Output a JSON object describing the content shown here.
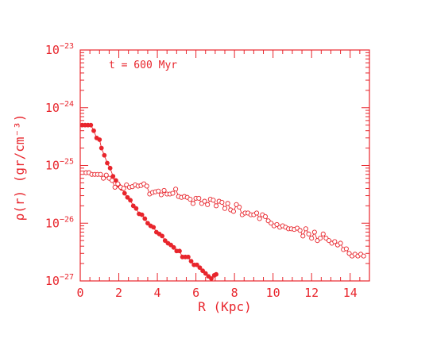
{
  "chart_data": {
    "type": "scatter",
    "annotation": "t = 600 Myr",
    "xlabel": "R (Kpc)",
    "ylabel": "ρ(r) (gr/cm⁻³)",
    "xlim": [
      0,
      15
    ],
    "ylim_log10": [
      -27,
      -23
    ],
    "y_scale": "log",
    "x_ticks": [
      "0",
      "2",
      "4",
      "6",
      "8",
      "10",
      "12",
      "14"
    ],
    "y_ticks": [
      {
        "base": "10",
        "exp": "−23"
      },
      {
        "base": "10",
        "exp": "−24"
      },
      {
        "base": "10",
        "exp": "−25"
      },
      {
        "base": "10",
        "exp": "−26"
      },
      {
        "base": "10",
        "exp": "−27"
      }
    ],
    "colors": {
      "axis": "#e8252c",
      "series": "#e8252c"
    },
    "series": [
      {
        "marker": "filled-circle",
        "x": [
          0.1,
          0.25,
          0.4,
          0.55,
          0.7,
          0.85,
          1.0,
          1.1,
          1.25,
          1.4,
          1.55,
          1.7,
          1.85,
          2.0,
          2.15,
          2.3,
          2.45,
          2.6,
          2.75,
          2.9,
          3.05,
          3.2,
          3.35,
          3.5,
          3.65,
          3.8,
          3.95,
          4.1,
          4.25,
          4.4,
          4.55,
          4.7,
          4.85,
          5.0,
          5.15,
          5.3,
          5.45,
          5.6,
          5.75,
          5.9,
          6.05,
          6.2,
          6.35,
          6.5,
          6.65,
          6.8,
          6.95,
          7.05
        ],
        "y": [
          5e-25,
          5e-25,
          5e-25,
          5e-25,
          4e-25,
          3e-25,
          2.8e-25,
          2e-25,
          1.5e-25,
          1.1e-25,
          9e-26,
          6.5e-26,
          5.5e-26,
          4.5e-26,
          4e-26,
          3.3e-26,
          2.8e-26,
          2.5e-26,
          2e-26,
          1.8e-26,
          1.45e-26,
          1.4e-26,
          1.2e-26,
          1e-26,
          9e-27,
          8.5e-27,
          7e-27,
          6.5e-27,
          6e-27,
          5e-27,
          4.5e-27,
          4.2e-27,
          3.8e-27,
          3.3e-27,
          3.3e-27,
          2.6e-27,
          2.6e-27,
          2.6e-27,
          2.2e-27,
          1.9e-27,
          1.9e-27,
          1.7e-27,
          1.5e-27,
          1.35e-27,
          1.2e-27,
          1.1e-27,
          1.25e-27,
          1.3e-27
        ]
      },
      {
        "marker": "open-circle",
        "x": [
          0.3,
          0.45,
          0.6,
          0.75,
          0.9,
          1.05,
          1.2,
          1.35,
          1.5,
          1.65,
          1.8,
          1.95,
          2.1,
          2.25,
          2.4,
          2.55,
          2.7,
          2.85,
          3.0,
          3.15,
          3.3,
          3.45,
          3.6,
          3.75,
          3.9,
          4.05,
          4.2,
          4.35,
          4.5,
          4.65,
          4.8,
          4.95,
          5.1,
          5.25,
          5.4,
          5.55,
          5.7,
          5.85,
          6.0,
          6.15,
          6.3,
          6.45,
          6.6,
          6.75,
          6.9,
          7.05,
          7.2,
          7.35,
          7.5,
          7.65,
          7.8,
          7.95,
          8.1,
          8.25,
          8.4,
          8.55,
          8.7,
          8.85,
          9.0,
          9.15,
          9.3,
          9.45,
          9.6,
          9.75,
          9.9,
          10.05,
          10.2,
          10.35,
          10.5,
          10.65,
          10.8,
          10.95,
          11.1,
          11.25,
          11.4,
          11.55,
          11.7,
          11.85,
          12.0,
          12.15,
          12.3,
          12.45,
          12.6,
          12.75,
          12.9,
          13.05,
          13.2,
          13.35,
          13.5,
          13.65,
          13.8,
          13.95,
          14.1,
          14.25,
          14.4,
          14.55,
          14.7
        ],
        "y": [
          7.5e-26,
          7.5e-26,
          7e-26,
          7e-26,
          7e-26,
          7e-26,
          6e-26,
          6.8e-26,
          6e-26,
          5.5e-26,
          4.2e-26,
          4.8e-26,
          4.2e-26,
          4e-26,
          4.6e-26,
          4.2e-26,
          4.3e-26,
          4.6e-26,
          4.4e-26,
          4.5e-26,
          4.8e-26,
          4.4e-26,
          3.2e-26,
          3.4e-26,
          3.5e-26,
          3.6e-26,
          3.1e-26,
          3.7e-26,
          3.2e-26,
          3.2e-26,
          3.3e-26,
          3.9e-26,
          2.9e-26,
          2.8e-26,
          2.9e-26,
          2.8e-26,
          2.6e-26,
          2.2e-26,
          2.7e-26,
          2.7e-26,
          2.2e-26,
          2.4e-26,
          2.1e-26,
          2.6e-26,
          2.5e-26,
          2e-26,
          2.4e-26,
          2.3e-26,
          1.8e-26,
          2.2e-26,
          1.7e-26,
          1.6e-26,
          2.1e-26,
          1.9e-26,
          1.4e-26,
          1.5e-26,
          1.5e-26,
          1.4e-26,
          1.4e-26,
          1.5e-26,
          1.2e-26,
          1.4e-26,
          1.3e-26,
          1.1e-26,
          1e-26,
          9e-27,
          9.5e-27,
          8.5e-27,
          9e-27,
          8.5e-27,
          8e-27,
          8e-27,
          7.8e-27,
          8.2e-27,
          7.5e-27,
          6e-27,
          8e-27,
          6.5e-27,
          5.5e-27,
          7e-27,
          5e-27,
          5.5e-27,
          6.5e-27,
          5.5e-27,
          5e-27,
          4.5e-27,
          4.8e-27,
          4.2e-27,
          4.5e-27,
          3.5e-27,
          3.6e-27,
          3e-27,
          2.7e-27,
          2.9e-27,
          2.7e-27,
          2.9e-27,
          2.7e-27
        ]
      }
    ]
  }
}
